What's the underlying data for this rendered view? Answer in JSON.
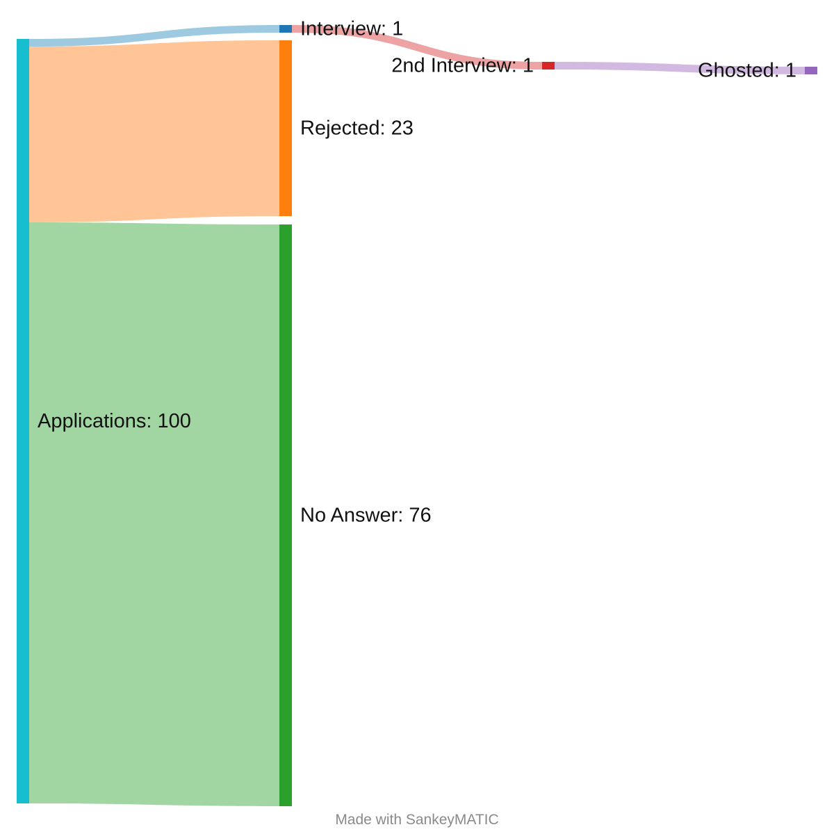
{
  "chart_data": {
    "type": "sankey",
    "nodes": [
      {
        "id": "applications",
        "label": "Applications: 100",
        "value": 100,
        "color": "#17becf"
      },
      {
        "id": "interview",
        "label": "Interview: 1",
        "value": 1,
        "color": "#1f77b4"
      },
      {
        "id": "rejected",
        "label": "Rejected: 23",
        "value": 23,
        "color": "#ff7f0e"
      },
      {
        "id": "no_answer",
        "label": "No Answer: 76",
        "value": 76,
        "color": "#2ca02c"
      },
      {
        "id": "second_interview",
        "label": "2nd Interview: 1",
        "value": 1,
        "color": "#d62728"
      },
      {
        "id": "ghosted",
        "label": "Ghosted: 1",
        "value": 1,
        "color": "#9467bd"
      }
    ],
    "links": [
      {
        "source": "applications",
        "target": "interview",
        "value": 1,
        "color": "#9ecae1"
      },
      {
        "source": "applications",
        "target": "rejected",
        "value": 23,
        "color": "#ffc596"
      },
      {
        "source": "applications",
        "target": "no_answer",
        "value": 76,
        "color": "#a1d5a1"
      },
      {
        "source": "interview",
        "target": "second_interview",
        "value": 1,
        "color": "#eda3a3"
      },
      {
        "source": "second_interview",
        "target": "ghosted",
        "value": 1,
        "color": "#d2b9e1"
      }
    ]
  },
  "credit": "Made with SankeyMATIC"
}
